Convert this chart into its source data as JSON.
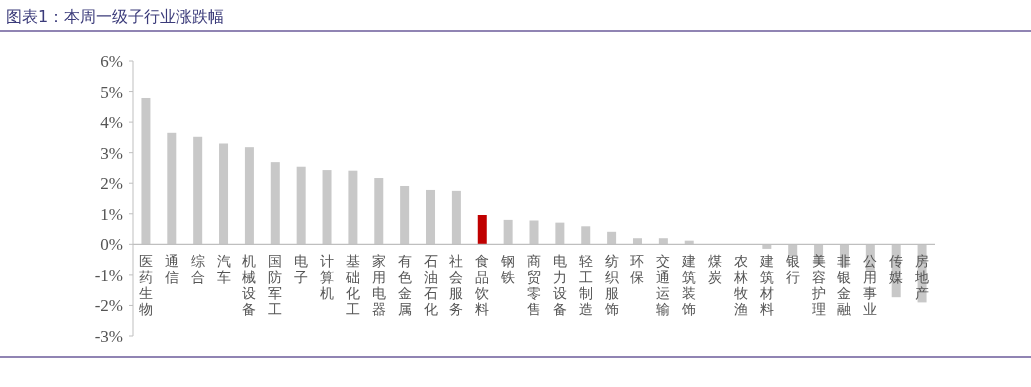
{
  "chart_data": {
    "type": "bar",
    "title": "图表1：本周一级子行业涨跌幅",
    "categories": [
      "医药生物",
      "通信",
      "综合",
      "汽车",
      "机械设备",
      "国防军工",
      "电子",
      "计算机",
      "基础化工",
      "家用电器",
      "有色金属",
      "石油石化",
      "社会服务",
      "食品饮料",
      "钢铁",
      "商贸零售",
      "电力设备",
      "轻工制造",
      "纺织服饰",
      "环保",
      "交通运输",
      "建筑装饰",
      "煤炭",
      "农林牧渔",
      "建筑材料",
      "银行",
      "美容护理",
      "非银金融",
      "公用事业",
      "传媒",
      "房地产"
    ],
    "values": [
      4.79,
      3.65,
      3.52,
      3.3,
      3.18,
      2.69,
      2.54,
      2.43,
      2.41,
      2.17,
      1.91,
      1.78,
      1.75,
      0.96,
      0.8,
      0.78,
      0.71,
      0.59,
      0.41,
      0.2,
      0.2,
      0.12,
      0.01,
      -0.01,
      -0.15,
      -0.4,
      -0.65,
      -0.75,
      -0.9,
      -1.73,
      -1.9
    ],
    "colors": [
      "#c8c8c8",
      "#c8c8c8",
      "#c8c8c8",
      "#c8c8c8",
      "#c8c8c8",
      "#c8c8c8",
      "#c8c8c8",
      "#c8c8c8",
      "#c8c8c8",
      "#c8c8c8",
      "#c8c8c8",
      "#c8c8c8",
      "#c8c8c8",
      "#c00000",
      "#c8c8c8",
      "#c8c8c8",
      "#c8c8c8",
      "#c8c8c8",
      "#c8c8c8",
      "#c8c8c8",
      "#c8c8c8",
      "#c8c8c8",
      "#c8c8c8",
      "#c8c8c8",
      "#c8c8c8",
      "#c8c8c8",
      "#c8c8c8",
      "#c8c8c8",
      "#c8c8c8",
      "#c8c8c8",
      "#c8c8c8"
    ],
    "ylim": [
      -3,
      6
    ],
    "yticks": [
      {
        "value": -3,
        "label": "-3%"
      },
      {
        "value": -2,
        "label": "-2%"
      },
      {
        "value": -1,
        "label": "-1%"
      },
      {
        "value": 0,
        "label": "0%"
      },
      {
        "value": 1,
        "label": "1%"
      },
      {
        "value": 2,
        "label": "2%"
      },
      {
        "value": 3,
        "label": "3%"
      },
      {
        "value": 4,
        "label": "4%"
      },
      {
        "value": 5,
        "label": "5%"
      },
      {
        "value": 6,
        "label": "6%"
      }
    ]
  }
}
